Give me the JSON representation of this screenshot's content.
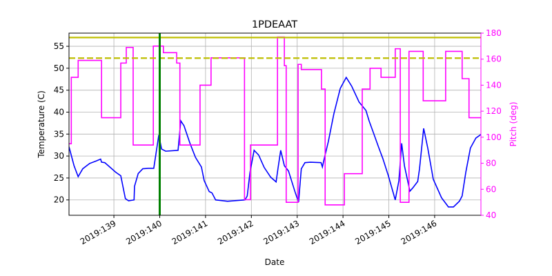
{
  "chart_data": {
    "type": "line",
    "title": "1PDEAAT",
    "xlabel": "Date",
    "ylabel": "Temperature (C)",
    "y2label": "Pitch (deg)",
    "y2color": "#ff00ff",
    "xlim": [
      138.02,
      147.01
    ],
    "ylim": [
      16.5,
      58
    ],
    "y2lim": [
      40,
      180
    ],
    "xticks": [
      {
        "value": 139,
        "label": "2019:139"
      },
      {
        "value": 140,
        "label": "2019:140"
      },
      {
        "value": 141,
        "label": "2019:141"
      },
      {
        "value": 142,
        "label": "2019:142"
      },
      {
        "value": 143,
        "label": "2019:143"
      },
      {
        "value": 144,
        "label": "2019:144"
      },
      {
        "value": 145,
        "label": "2019:145"
      },
      {
        "value": 146,
        "label": "2019:146"
      }
    ],
    "yticks": [
      20,
      25,
      30,
      35,
      40,
      45,
      50,
      55
    ],
    "y2ticks": [
      40,
      60,
      80,
      100,
      120,
      140,
      160,
      180
    ],
    "grid": true,
    "hlines": [
      {
        "y": 57,
        "color": "#bfbf00",
        "style": "solid"
      },
      {
        "y": 52.3,
        "color": "#bfbf00",
        "style": "dashed"
      }
    ],
    "vlines": [
      {
        "x": 140.0,
        "color": "#008000"
      }
    ],
    "series": [
      {
        "color": "#0000ff",
        "axis": "y",
        "x": [
          138.02,
          138.13,
          138.22,
          138.32,
          138.47,
          138.62,
          138.71,
          138.73,
          138.8,
          138.92,
          139.04,
          139.15,
          139.25,
          139.32,
          139.44,
          139.45,
          139.53,
          139.63,
          139.75,
          139.87,
          139.98,
          140.04,
          140.13,
          140.4,
          140.46,
          140.53,
          140.66,
          140.78,
          140.91,
          140.97,
          141.08,
          141.14,
          141.22,
          141.48,
          141.86,
          141.91,
          141.97,
          142.06,
          142.16,
          142.28,
          142.42,
          142.54,
          142.58,
          142.64,
          142.72,
          142.81,
          142.96,
          143.03,
          143.09,
          143.17,
          143.29,
          143.52,
          143.55,
          143.59,
          143.68,
          143.8,
          143.94,
          144.07,
          144.19,
          144.35,
          144.5,
          144.57,
          144.65,
          144.77,
          144.87,
          144.99,
          145.14,
          145.22,
          145.28,
          145.34,
          145.46,
          145.52,
          145.63,
          145.67,
          145.76,
          145.85,
          145.97,
          146.15,
          146.3,
          146.41,
          146.54,
          146.6,
          146.68,
          146.78,
          146.9,
          147.01
        ],
        "values": [
          32.1,
          27.8,
          25.3,
          27.1,
          28.3,
          28.9,
          29.3,
          28.6,
          28.5,
          27.4,
          26.3,
          25.5,
          20.3,
          19.8,
          20.0,
          23.1,
          26.0,
          27.1,
          27.2,
          27.2,
          34.8,
          31.6,
          31.1,
          31.3,
          38.0,
          36.9,
          32.9,
          29.7,
          27.5,
          24.4,
          21.9,
          21.6,
          20.0,
          19.7,
          20.0,
          20.9,
          26.3,
          31.3,
          30.2,
          27.4,
          25.2,
          24.1,
          27.1,
          31.3,
          27.8,
          26.6,
          21.6,
          19.5,
          27.1,
          28.5,
          28.6,
          28.5,
          27.5,
          29.4,
          33.3,
          39.6,
          45.4,
          47.9,
          45.9,
          42.3,
          40.4,
          38.0,
          35.7,
          32.2,
          29.4,
          25.5,
          20.0,
          24.4,
          32.9,
          27.8,
          22.0,
          22.7,
          24.2,
          27.1,
          36.3,
          31.8,
          24.7,
          20.5,
          18.4,
          18.4,
          19.7,
          20.9,
          26.3,
          31.8,
          34.1,
          34.9
        ]
      },
      {
        "color": "#ff00ff",
        "axis": "y2",
        "x": [
          138.02,
          138.07,
          138.07,
          138.22,
          138.22,
          138.73,
          138.73,
          139.15,
          139.15,
          139.27,
          139.27,
          139.42,
          139.42,
          139.86,
          139.86,
          140.08,
          140.08,
          140.37,
          140.37,
          140.44,
          140.44,
          140.88,
          140.88,
          141.12,
          141.12,
          141.85,
          141.85,
          141.98,
          141.98,
          142.57,
          142.57,
          142.72,
          142.72,
          142.76,
          142.76,
          143.02,
          143.02,
          143.09,
          143.09,
          143.53,
          143.53,
          143.61,
          143.61,
          144.03,
          144.03,
          144.42,
          144.42,
          144.59,
          144.59,
          144.83,
          144.83,
          145.14,
          145.14,
          145.25,
          145.25,
          145.44,
          145.44,
          145.75,
          145.75,
          146.24,
          146.24,
          146.6,
          146.6,
          146.75,
          146.75,
          147.01
        ],
        "values": [
          95,
          95,
          146,
          146,
          159,
          159,
          115,
          115,
          157,
          157,
          169,
          169,
          94,
          94,
          170,
          170,
          165,
          165,
          157,
          157,
          94,
          94,
          140,
          140,
          161,
          161,
          52,
          52,
          94,
          94,
          177,
          177,
          155,
          155,
          50,
          50,
          156,
          156,
          152,
          152,
          137,
          137,
          48,
          48,
          72,
          72,
          137,
          137,
          153,
          153,
          146,
          146,
          168,
          168,
          50,
          50,
          166,
          166,
          128,
          128,
          166,
          166,
          145,
          145,
          115,
          115
        ]
      }
    ]
  }
}
